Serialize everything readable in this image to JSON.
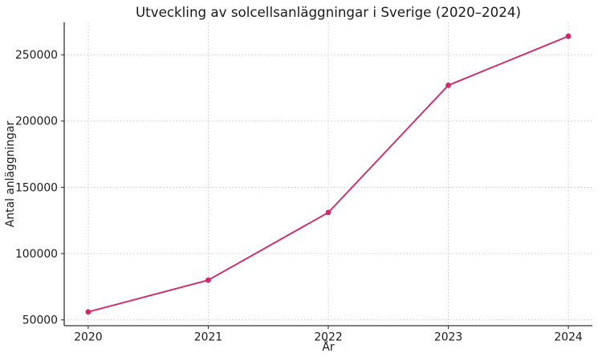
{
  "chart_data": {
    "type": "line",
    "title": "Utveckling av solcellsanläggningar i Sverige (2020–2024)",
    "xlabel": "År",
    "ylabel": "Antal anläggningar",
    "x": [
      2020,
      2021,
      2022,
      2023,
      2024
    ],
    "series": [
      {
        "name": "Antal anläggningar",
        "values": [
          56000,
          80000,
          131000,
          227000,
          264000
        ]
      }
    ],
    "xticks": [
      "2020",
      "2021",
      "2022",
      "2023",
      "2024"
    ],
    "xtick_values": [
      2020,
      2021,
      2022,
      2023,
      2024
    ],
    "yticks": [
      "50000",
      "100000",
      "150000",
      "200000",
      "250000"
    ],
    "ytick_values": [
      50000,
      100000,
      150000,
      200000,
      250000
    ],
    "xlim": [
      2019.8,
      2024.2
    ],
    "ylim": [
      45600,
      274400
    ],
    "grid": "on",
    "grid_style": "dotted",
    "legend": "none",
    "marker": "circle",
    "colors": {
      "line": "#d02a6e",
      "marker": "#d02a6e",
      "grid": "#c9c9c9",
      "spine": "#333333",
      "tick": "#333333",
      "text": "#1a1a1a",
      "background": "#ffffff"
    }
  }
}
